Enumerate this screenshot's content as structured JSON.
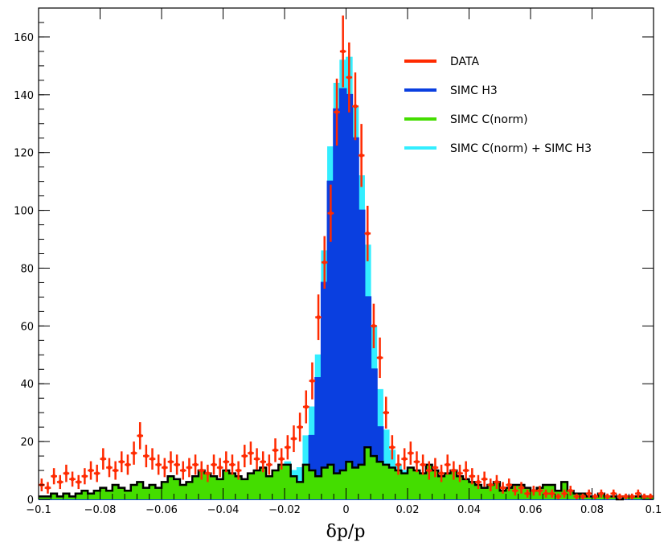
{
  "chart_data": {
    "type": "histogram",
    "title": "",
    "xlabel": "δp/p",
    "ylabel": "",
    "xlim": [
      -0.1,
      0.1
    ],
    "ylim": [
      0,
      170
    ],
    "x_ticks": [
      -0.1,
      -0.08,
      -0.06,
      -0.04,
      -0.02,
      0,
      0.02,
      0.04,
      0.06,
      0.08,
      0.1
    ],
    "x_tick_labels": [
      "−0.1",
      "−0.08",
      "−0.06",
      "−0.04",
      "−0.02",
      "0",
      "0.02",
      "0.04",
      "0.06",
      "0.08",
      "0.1"
    ],
    "y_ticks": [
      0,
      20,
      40,
      60,
      80,
      100,
      120,
      140,
      160
    ],
    "y_tick_labels": [
      "0",
      "20",
      "40",
      "60",
      "80",
      "100",
      "120",
      "140",
      "160"
    ],
    "legend_position": "top-right",
    "bin_width": 0.002,
    "series": [
      {
        "name": "DATA",
        "color": "#ff2a00",
        "style": "points-with-errorbars",
        "x": [
          -0.099,
          -0.097,
          -0.095,
          -0.093,
          -0.091,
          -0.089,
          -0.087,
          -0.085,
          -0.083,
          -0.081,
          -0.079,
          -0.077,
          -0.075,
          -0.073,
          -0.071,
          -0.069,
          -0.067,
          -0.065,
          -0.063,
          -0.061,
          -0.059,
          -0.057,
          -0.055,
          -0.053,
          -0.051,
          -0.049,
          -0.047,
          -0.045,
          -0.043,
          -0.041,
          -0.039,
          -0.037,
          -0.035,
          -0.033,
          -0.031,
          -0.029,
          -0.027,
          -0.025,
          -0.023,
          -0.021,
          -0.019,
          -0.017,
          -0.015,
          -0.013,
          -0.011,
          -0.009,
          -0.007,
          -0.005,
          -0.003,
          -0.001,
          0.001,
          0.003,
          0.005,
          0.007,
          0.009,
          0.011,
          0.013,
          0.015,
          0.017,
          0.019,
          0.021,
          0.023,
          0.025,
          0.027,
          0.029,
          0.031,
          0.033,
          0.035,
          0.037,
          0.039,
          0.041,
          0.043,
          0.045,
          0.047,
          0.049,
          0.051,
          0.053,
          0.055,
          0.057,
          0.059,
          0.061,
          0.063,
          0.065,
          0.067,
          0.069,
          0.071,
          0.073,
          0.075,
          0.077,
          0.079,
          0.081,
          0.083,
          0.085,
          0.087,
          0.089,
          0.091,
          0.093,
          0.095,
          0.097,
          0.099
        ],
        "y": [
          5,
          4,
          8,
          6,
          9,
          7,
          6,
          8,
          10,
          9,
          14,
          11,
          10,
          13,
          12,
          16,
          22,
          15,
          14,
          12,
          11,
          13,
          12,
          10,
          11,
          12,
          10,
          9,
          12,
          11,
          13,
          12,
          10,
          15,
          16,
          14,
          13,
          12,
          17,
          14,
          18,
          21,
          25,
          32,
          41,
          63,
          82,
          99,
          134,
          155,
          146,
          136,
          119,
          92,
          60,
          49,
          30,
          18,
          12,
          14,
          16,
          13,
          12,
          10,
          11,
          9,
          12,
          10,
          9,
          10,
          8,
          6,
          7,
          5,
          6,
          4,
          5,
          3,
          4,
          2,
          3,
          3,
          2,
          2,
          1,
          2,
          3,
          1,
          1,
          2,
          1,
          2,
          1,
          2,
          1,
          1,
          1,
          2,
          1,
          1
        ],
        "y_err": [
          2.2,
          2,
          2.8,
          2.4,
          3,
          2.6,
          2.4,
          2.8,
          3.2,
          3,
          3.7,
          3.3,
          3.2,
          3.6,
          3.5,
          4,
          4.7,
          3.9,
          3.7,
          3.5,
          3.3,
          3.6,
          3.5,
          3.2,
          3.3,
          3.5,
          3.2,
          3,
          3.5,
          3.3,
          3.6,
          3.5,
          3.2,
          3.9,
          4,
          3.7,
          3.6,
          3.5,
          4.1,
          3.7,
          4.2,
          4.6,
          5,
          5.7,
          6.4,
          7.9,
          9.1,
          9.9,
          11.6,
          12.4,
          12.1,
          11.7,
          10.9,
          9.6,
          7.7,
          7,
          5.5,
          4.2,
          3.5,
          3.7,
          4,
          3.6,
          3.5,
          3.2,
          3.3,
          3,
          3.5,
          3.2,
          3,
          3.2,
          2.8,
          2.4,
          2.6,
          2.2,
          2.4,
          2,
          2.2,
          1.7,
          2,
          1.4,
          1.7,
          1.7,
          1.4,
          1.4,
          1,
          1.4,
          1.7,
          1,
          1,
          1.4,
          1,
          1.4,
          1,
          1.4,
          1,
          1,
          1,
          1.4,
          1,
          1
        ]
      },
      {
        "name": "SIMC H3",
        "color": "#0a3fe0",
        "style": "filled-histogram",
        "edges_start": -0.1,
        "values": [
          0,
          0,
          0,
          0,
          0,
          0,
          0,
          0,
          0,
          0,
          0,
          0,
          0,
          0,
          0,
          0,
          0,
          0,
          0,
          0,
          0,
          0,
          0,
          0,
          0,
          0,
          0,
          0,
          0,
          0,
          0,
          0,
          0,
          0,
          0,
          0,
          0,
          0,
          0,
          0,
          1,
          2,
          5,
          10,
          22,
          42,
          75,
          110,
          135,
          142,
          140,
          125,
          100,
          70,
          45,
          25,
          12,
          6,
          2,
          1,
          0,
          0,
          0,
          0,
          0,
          0,
          0,
          0,
          0,
          0,
          0,
          0,
          0,
          0,
          0,
          0,
          0,
          0,
          0,
          0,
          0,
          0,
          0,
          0,
          0,
          0,
          0,
          0,
          0,
          0,
          0,
          0,
          0,
          0,
          0,
          0,
          0,
          0,
          0,
          0
        ]
      },
      {
        "name": "SIMC C(norm)",
        "color": "#44dd00",
        "outline": "#000000",
        "style": "filled-histogram",
        "edges_start": -0.1,
        "values": [
          1,
          1,
          2,
          1,
          2,
          1,
          2,
          3,
          2,
          3,
          4,
          3,
          5,
          4,
          3,
          5,
          6,
          4,
          5,
          4,
          6,
          8,
          7,
          5,
          6,
          8,
          10,
          9,
          8,
          7,
          10,
          9,
          8,
          7,
          9,
          10,
          11,
          8,
          10,
          12,
          12,
          8,
          6,
          12,
          10,
          8,
          11,
          12,
          9,
          10,
          13,
          11,
          12,
          18,
          15,
          13,
          12,
          11,
          10,
          9,
          11,
          10,
          9,
          12,
          10,
          8,
          9,
          10,
          8,
          7,
          6,
          5,
          4,
          5,
          6,
          3,
          4,
          5,
          5,
          4,
          3,
          4,
          5,
          5,
          3,
          6,
          3,
          2,
          2,
          1,
          1,
          2,
          1,
          1,
          0,
          1,
          1,
          1,
          1,
          1
        ]
      },
      {
        "name": "SIMC C(norm) + SIMC H3",
        "color": "#33eeff",
        "style": "filled-histogram",
        "edges_start": -0.1,
        "values": [
          1,
          1,
          2,
          1,
          2,
          1,
          2,
          3,
          2,
          3,
          4,
          3,
          5,
          4,
          3,
          5,
          6,
          4,
          5,
          4,
          6,
          8,
          7,
          5,
          6,
          8,
          10,
          9,
          8,
          7,
          10,
          9,
          8,
          7,
          9,
          10,
          11,
          8,
          10,
          12,
          13,
          10,
          11,
          22,
          32,
          50,
          86,
          122,
          144,
          152,
          153,
          136,
          112,
          88,
          60,
          38,
          24,
          17,
          12,
          10,
          11,
          10,
          9,
          12,
          10,
          8,
          9,
          10,
          8,
          7,
          6,
          5,
          4,
          5,
          6,
          3,
          4,
          5,
          5,
          4,
          3,
          4,
          5,
          5,
          3,
          6,
          3,
          2,
          2,
          1,
          1,
          2,
          1,
          1,
          0,
          1,
          1,
          1,
          1,
          1
        ]
      }
    ]
  }
}
